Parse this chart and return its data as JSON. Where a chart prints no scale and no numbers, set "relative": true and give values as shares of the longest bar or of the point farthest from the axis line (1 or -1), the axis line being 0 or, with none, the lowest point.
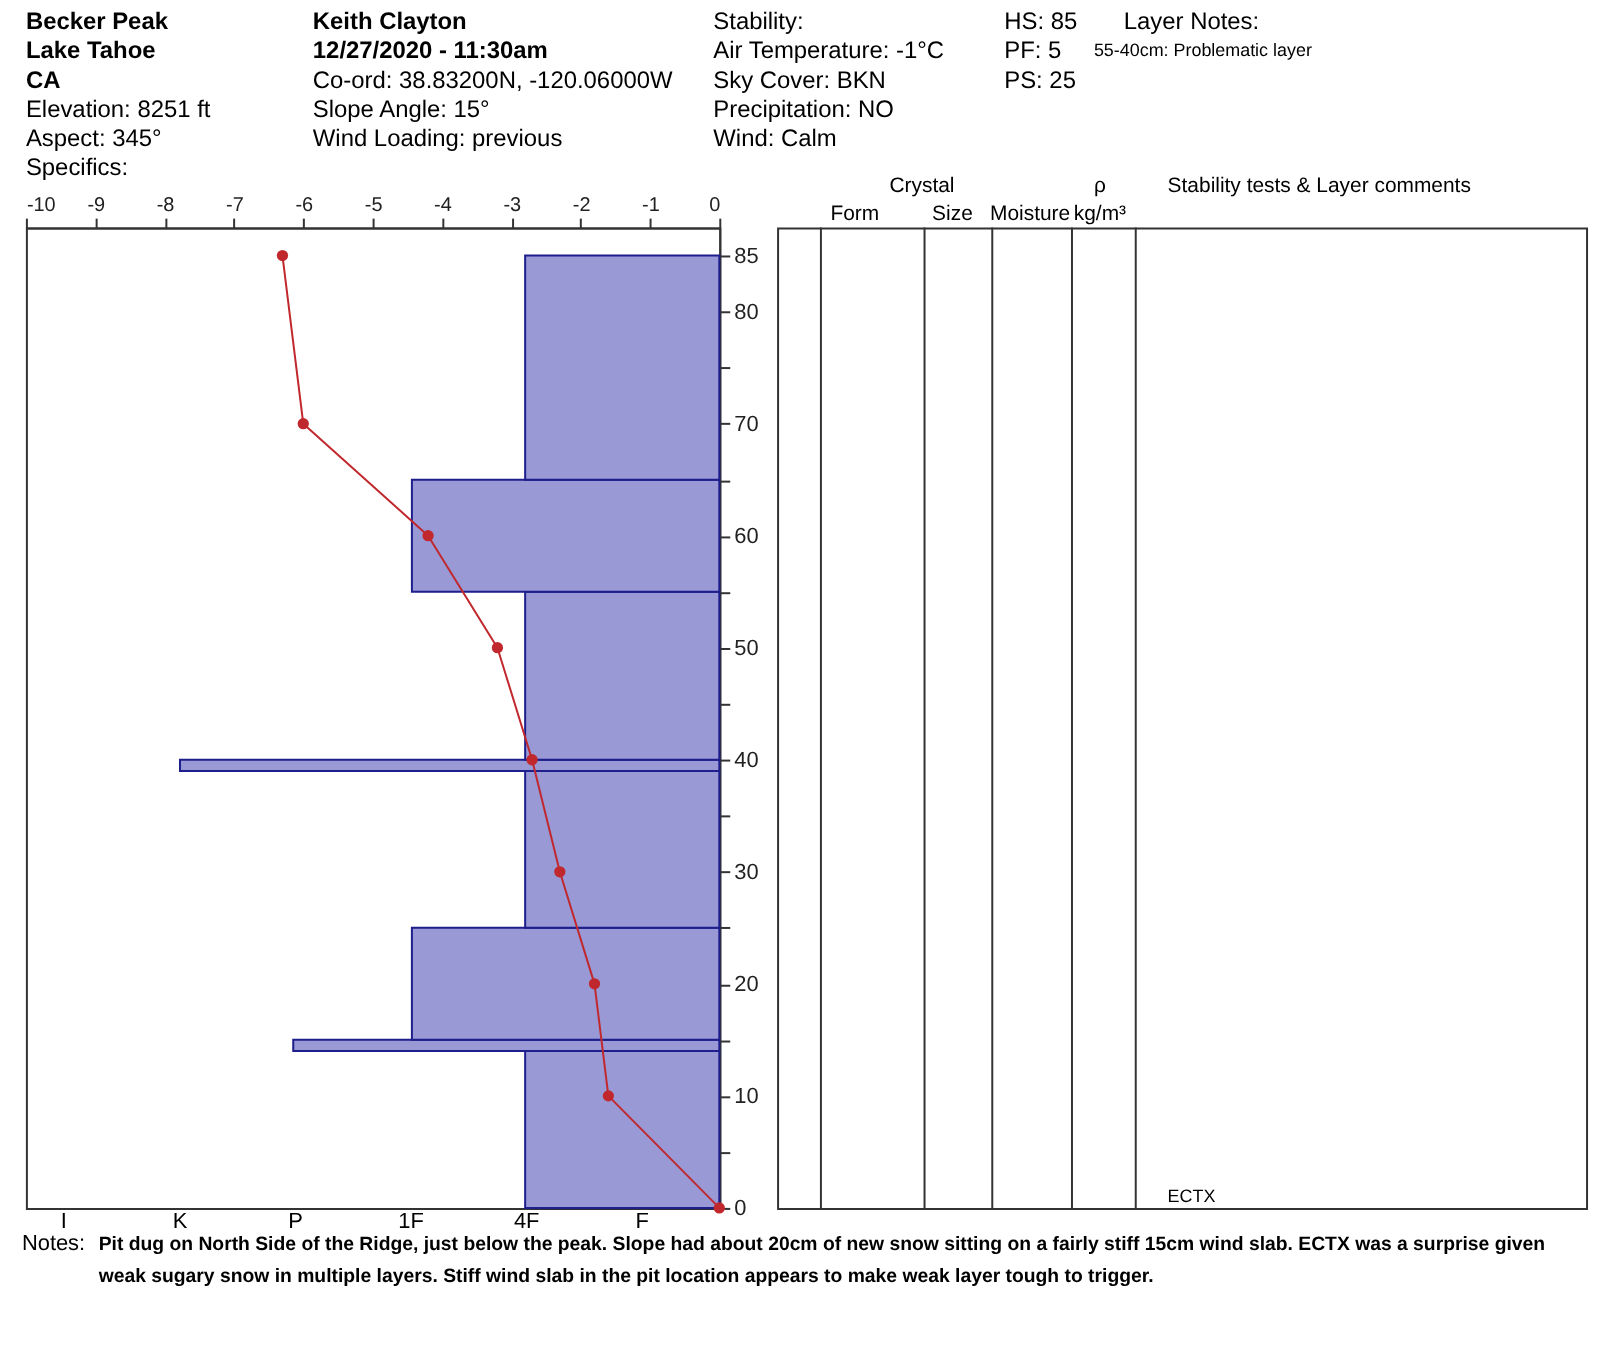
{
  "chart_data": [
    {
      "type": "bar",
      "orientation": "horizontal",
      "relative": true,
      "series": [
        {
          "color": "#9999d6",
          "x": [
            7,
            14.5,
            20,
            32,
            39.5,
            47.5,
            60,
            75
          ],
          "values": [
            -0.36,
            -0.79,
            -0.57,
            -0.36,
            -1,
            -0.36,
            -0.57,
            -0.36
          ]
        }
      ],
      "ylim": [
        0,
        87.5
      ],
      "yticks": [
        0,
        {
          "value": 5,
          "label": null
        },
        10,
        {
          "value": 15,
          "label": null
        },
        20,
        {
          "value": 25,
          "label": null
        },
        30,
        {
          "value": 35,
          "label": null
        },
        40,
        {
          "value": 45,
          "label": null
        },
        50,
        {
          "value": 55,
          "label": null
        },
        60,
        {
          "value": 65,
          "label": null
        },
        70,
        {
          "value": 75,
          "label": null
        },
        80,
        85
      ],
      "annotations": [
        "Becker Peak",
        "Lake Tahoe",
        "CA",
        "Elevation: 8251 ft",
        "Aspect: 345°",
        "Specifics:",
        "Keith Clayton",
        "12/27/2020 - 11:30am",
        "Co-ord: 38.83200N, -120.06000W",
        "Slope Angle: 15°",
        "Wind Loading: previous",
        "Stability:",
        "Air Temperature: -1°C",
        "Sky Cover: BKN",
        "Precipitation: NO",
        "Wind: Calm",
        "HS: 85",
        "PF: 5",
        "PS: 25",
        "Layer Notes:",
        "55-40cm: Problematic layer",
        "Notes:",
        "Pit dug on North Side of the Ridge, just below the peak. Slope had about 20cm of new snow sitting on a fairly stiff 15cm wind slab. ECTX was a surprise given weak sugary snow in multiple layers. Stiff wind slab in the pit location appears to make weak layer tough to trigger.",
        "I",
        "K",
        "P",
        "1F",
        "4F",
        "F"
      ]
    },
    {
      "type": "line",
      "orientation": "horizontal",
      "tick_labels": "x",
      "series": [
        {
          "color": "#c0282d",
          "marker": "circle",
          "x": [
            85,
            70,
            60,
            50,
            40,
            30,
            20,
            10,
            0
          ],
          "values": [
            -6.3,
            -6.0,
            -4.2,
            -3.2,
            -2.7,
            -2.3,
            -1.8,
            -1.6,
            0
          ]
        }
      ],
      "xlim": [
        -10,
        0
      ],
      "xticks": [
        -10,
        -9,
        -8,
        -7,
        -6,
        -5,
        -4,
        -3,
        -2,
        -1,
        0
      ],
      "ylim": [
        0,
        87.5
      ]
    },
    {
      "type": "other",
      "annotations": [
        "Crystal",
        "Form",
        "Size",
        "Moisture",
        "ρ",
        "kg/m³",
        "Stability tests & Layer comments",
        "ECTX"
      ]
    }
  ]
}
